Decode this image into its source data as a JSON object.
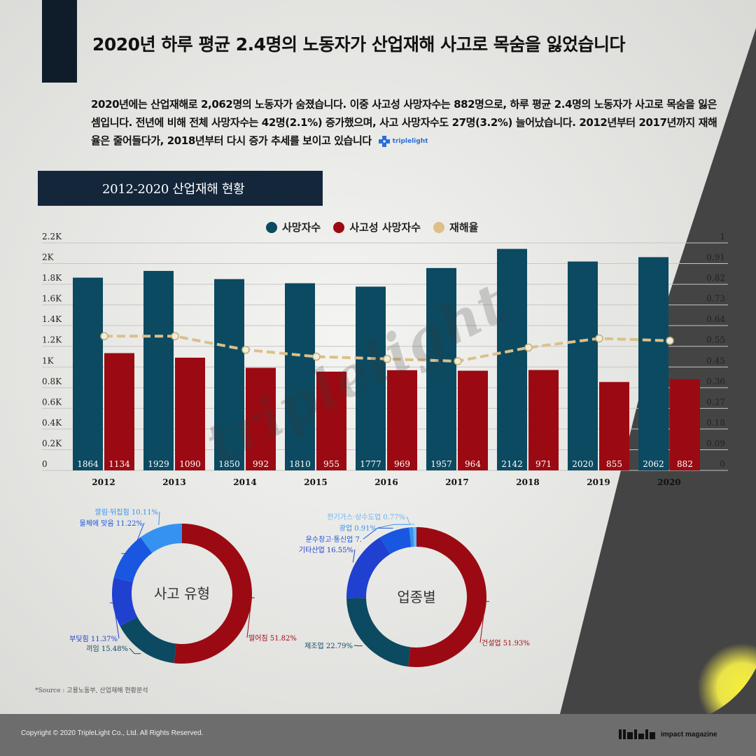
{
  "title": "2020년 하루 평균 2.4명의 노동자가 산업재해 사고로 목숨을 잃었습니다",
  "description": "2020년에는 산업재해로 2,062명의 노동자가 숨졌습니다. 이중 사고성 사망자수는 882명으로, 하루 평균 2.4명의 노동자가 사고로 목숨을 잃은 셈입니다. 전년에 비해 전체 사망자수는 42명(2.1%) 증가했으며, 사고 사망자수도 27명(3.2%) 늘어났습니다. 2012년부터 2017년까지 재해율은 줄어들다가, 2018년부터 다시 증가 추세를 보이고 있습니다",
  "brand_inline": "triplelight",
  "section_title": "2012-2020 산업재해 현황",
  "watermark": "triplelight",
  "source": "*Source : 고용노동부, 산업재해 현황분석",
  "footer": {
    "copyright": "Copyright © 2020 TripleLight Co., Ltd. All Rights Reserved.",
    "brand": "impact magazine"
  },
  "colors": {
    "deaths": "#0b4a60",
    "accident_deaths": "#9b0a12",
    "rate": "#dcc08a",
    "dark": "#14263a"
  },
  "chart_data": [
    {
      "type": "bar",
      "categories": [
        "2012",
        "2013",
        "2014",
        "2015",
        "2016",
        "2017",
        "2018",
        "2019",
        "2020"
      ],
      "series": [
        {
          "name": "사망자수",
          "values": [
            1864,
            1929,
            1850,
            1810,
            1777,
            1957,
            2142,
            2020,
            2062
          ],
          "axis": "left",
          "color": "#0b4a60"
        },
        {
          "name": "사고성 사망자수",
          "values": [
            1134,
            1090,
            992,
            955,
            969,
            964,
            971,
            855,
            882
          ],
          "axis": "left",
          "color": "#9b0a12"
        },
        {
          "name": "재해율",
          "values": [
            0.59,
            0.59,
            0.53,
            0.5,
            0.49,
            0.48,
            0.54,
            0.58,
            0.57
          ],
          "axis": "right",
          "type": "line",
          "color": "#dcc08a"
        }
      ],
      "y_left_ticks": [
        "0",
        "0.2K",
        "0.4K",
        "0.6K",
        "0.8K",
        "1K",
        "1.2K",
        "1.4K",
        "1.6K",
        "1.8K",
        "2K",
        "2.2K"
      ],
      "y_right_ticks": [
        "0",
        "0.09",
        "0.18",
        "0.27",
        "0.36",
        "0.45",
        "0.55",
        "0.64",
        "0.73",
        "0.82",
        "0.91",
        "1"
      ],
      "ylim_left": [
        0,
        2200
      ],
      "ylim_right": [
        0,
        1
      ],
      "legend": "top-center",
      "grid": true
    },
    {
      "type": "pie",
      "center_label": "사고 유형",
      "slices": [
        {
          "label": "떨어짐 51.82%",
          "value": 51.82,
          "color": "#9b0a12"
        },
        {
          "label": "끼임 15.48%",
          "value": 15.48,
          "color": "#0b4a60"
        },
        {
          "label": "부딪힘 11.37%",
          "value": 11.37,
          "color": "#2040d0"
        },
        {
          "label": "물체에 맞음 11.22%",
          "value": 11.22,
          "color": "#1957e0"
        },
        {
          "label": "깔림·뒤집힘 10.11%",
          "value": 10.11,
          "color": "#3592f0"
        }
      ]
    },
    {
      "type": "pie",
      "center_label": "업종별",
      "slices": [
        {
          "label": "건설업 51.93%",
          "value": 51.93,
          "color": "#9b0a12"
        },
        {
          "label": "제조업 22.79%",
          "value": 22.79,
          "color": "#0b4a60"
        },
        {
          "label": "기타산업 16.55%",
          "value": 16.55,
          "color": "#2040d0"
        },
        {
          "label": "운수창고·통신업 7.",
          "value": 7.05,
          "color": "#1957e0"
        },
        {
          "label": "광업 0.91%",
          "value": 0.91,
          "color": "#3592f0"
        },
        {
          "label": "전기가스·상수도업 0.77%",
          "value": 0.77,
          "color": "#6cb4f5"
        }
      ]
    }
  ]
}
